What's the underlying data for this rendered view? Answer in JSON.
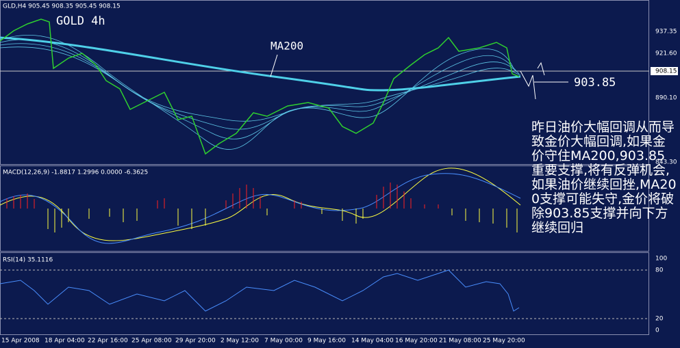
{
  "main_panel": {
    "header": "GLD,H4  905.45 908.35 905.45 908.15",
    "title": "GOLD 4h",
    "ma_label": "MA200",
    "level_label": "903.85",
    "price_ticks": [
      "937.35",
      "921.60",
      "908.15",
      "890.10",
      "843.30"
    ]
  },
  "annotation": "昨日油价大幅回调从而导致金价大幅回调,如果金价守住MA200,903.85重要支撑,将有反弹机会,如果油价继续回挫,MA200支撑可能失守,金价将破除903.85支撑并向下方继续回归",
  "macd_panel": {
    "header": "MACD(12,26,9) -1.8817 1.2996 0.0000 -6.3625"
  },
  "rsi_panel": {
    "header": "RSI(14) 35.1116",
    "ticks": [
      "100",
      "80",
      "20",
      "0"
    ]
  },
  "x_axis": {
    "labels": [
      "15 Apr 2008",
      "18 Apr 04:00",
      "22 Apr 16:00",
      "25 Apr 08:00",
      "29 Apr 20:00",
      "2 May 12:00",
      "7 May 00:00",
      "9 May 16:00",
      "14 May 04:00",
      "16 May 20:00",
      "21 May 08:00",
      "25 May 20:00"
    ]
  }
}
